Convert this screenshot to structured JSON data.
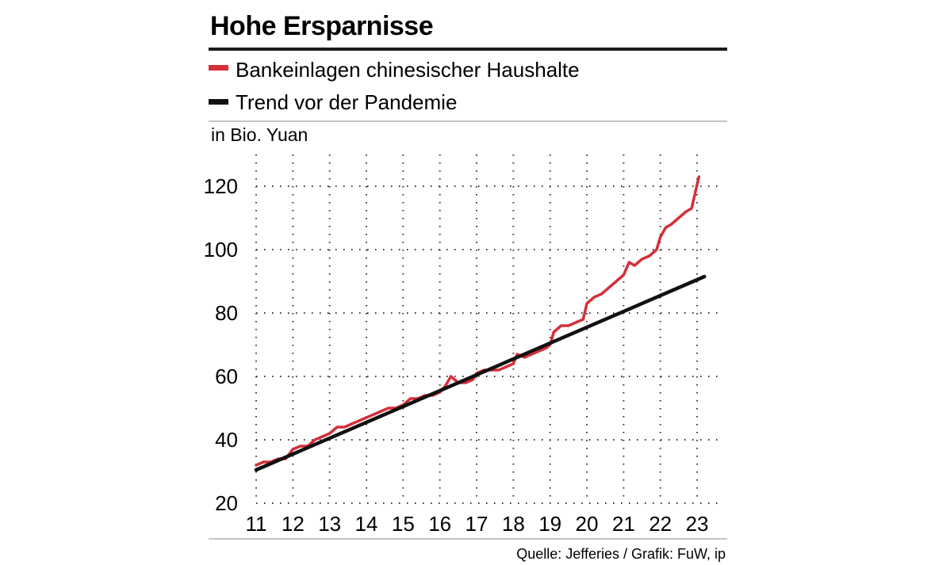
{
  "chart_data": {
    "type": "line",
    "title": "Hohe Ersparnisse",
    "ylabel": "in Bio. Yuan",
    "xlabel": "",
    "source": "Quelle: Jefferies / Grafik: FuW, ip",
    "xlim": [
      11,
      23.5
    ],
    "ylim": [
      20,
      124
    ],
    "x_ticks": [
      "11",
      "12",
      "13",
      "14",
      "15",
      "16",
      "17",
      "18",
      "19",
      "20",
      "21",
      "22",
      "23"
    ],
    "x_tick_values": [
      11,
      12,
      13,
      14,
      15,
      16,
      17,
      18,
      19,
      20,
      21,
      22,
      23
    ],
    "y_ticks": [
      "20",
      "40",
      "60",
      "80",
      "100",
      "120"
    ],
    "y_tick_values": [
      20,
      40,
      60,
      80,
      100,
      120
    ],
    "grid": true,
    "legend_position": "top",
    "series": [
      {
        "name": "Bankeinlagen chinesischer Haushalte",
        "color": "#d3303a",
        "x": [
          11.0,
          11.2,
          11.4,
          11.6,
          11.8,
          12.0,
          12.2,
          12.4,
          12.6,
          12.8,
          13.0,
          13.2,
          13.4,
          13.6,
          13.8,
          14.0,
          14.2,
          14.4,
          14.6,
          14.8,
          15.0,
          15.2,
          15.4,
          15.6,
          15.8,
          16.0,
          16.15,
          16.3,
          16.5,
          16.7,
          16.9,
          17.0,
          17.2,
          17.4,
          17.6,
          17.8,
          18.0,
          18.1,
          18.3,
          18.5,
          18.7,
          18.9,
          19.0,
          19.1,
          19.3,
          19.5,
          19.7,
          19.9,
          20.0,
          20.2,
          20.4,
          20.6,
          20.8,
          21.0,
          21.15,
          21.3,
          21.5,
          21.7,
          21.9,
          22.0,
          22.15,
          22.3,
          22.5,
          22.7,
          22.85,
          22.95,
          23.05
        ],
        "values": [
          32,
          33,
          33,
          34,
          34,
          37,
          38,
          38,
          40,
          41,
          42,
          44,
          44,
          45,
          46,
          47,
          48,
          49,
          50,
          50,
          51,
          53,
          53,
          54,
          54,
          55,
          57,
          60,
          58,
          58,
          59,
          61,
          62,
          62,
          62,
          63,
          64,
          67,
          66,
          67,
          68,
          69,
          70,
          74,
          76,
          76,
          77,
          78,
          83,
          85,
          86,
          88,
          90,
          92,
          96,
          95,
          97,
          98,
          100,
          104,
          107,
          108,
          110,
          112,
          113,
          118,
          123
        ]
      },
      {
        "name": "Trend vor der Pandemie",
        "color": "#111111",
        "x": [
          11.0,
          23.2
        ],
        "values": [
          30.5,
          91.5
        ]
      }
    ]
  },
  "legend": [
    {
      "label": "Bankeinlagen chinesischer Haushalte",
      "color": "#d3303a"
    },
    {
      "label": "Trend vor der Pandemie",
      "color": "#111111"
    }
  ]
}
